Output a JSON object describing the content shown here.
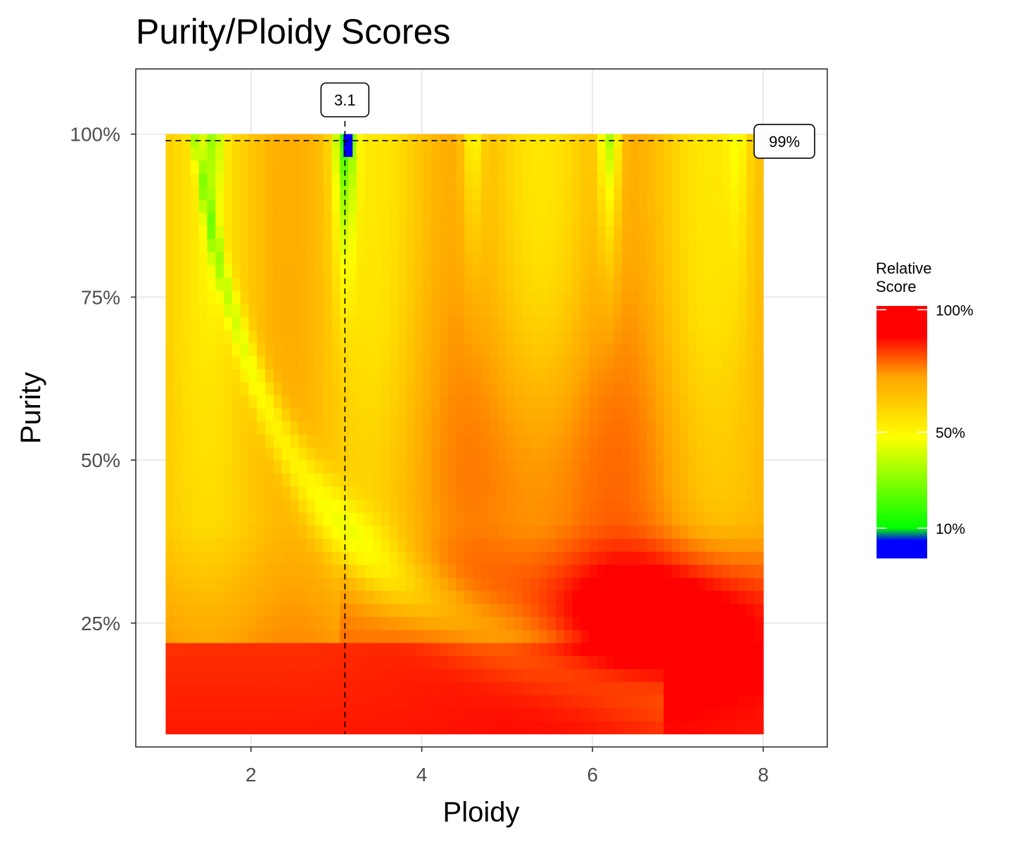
{
  "chart_data": {
    "type": "heatmap",
    "title": "Purity/Ploidy Scores",
    "xlabel": "Ploidy",
    "ylabel": "Purity",
    "xlim": [
      0.65,
      8.75
    ],
    "ylim": [
      0.06,
      1.1
    ],
    "x_range": [
      1.0,
      8.0
    ],
    "y_range": [
      0.08,
      1.0
    ],
    "x_ticks": [
      2,
      4,
      6,
      8
    ],
    "x_tick_labels": [
      "2",
      "4",
      "6",
      "8"
    ],
    "y_ticks": [
      0.25,
      0.5,
      0.75,
      1.0
    ],
    "y_tick_labels": [
      "25%",
      "50%",
      "75%",
      "100%"
    ],
    "grid": true,
    "optimum": {
      "ploidy": 3.1,
      "purity": 0.99
    },
    "annotations": [
      {
        "label": "3.1",
        "axis": "x",
        "value": 3.1
      },
      {
        "label": "99%",
        "axis": "y",
        "value": 0.99
      }
    ],
    "colorscale": [
      "#0000ff",
      "#00ff00",
      "#ffff00",
      "#ffa500",
      "#ff0000"
    ],
    "legend": {
      "title_lines": [
        "Relative",
        "Score"
      ],
      "placement": "right",
      "ticks": [
        {
          "label": "100%",
          "value": 1.0
        },
        {
          "label": "50%",
          "value": 0.5
        },
        {
          "label": "10%",
          "value": 0.1
        }
      ]
    }
  }
}
